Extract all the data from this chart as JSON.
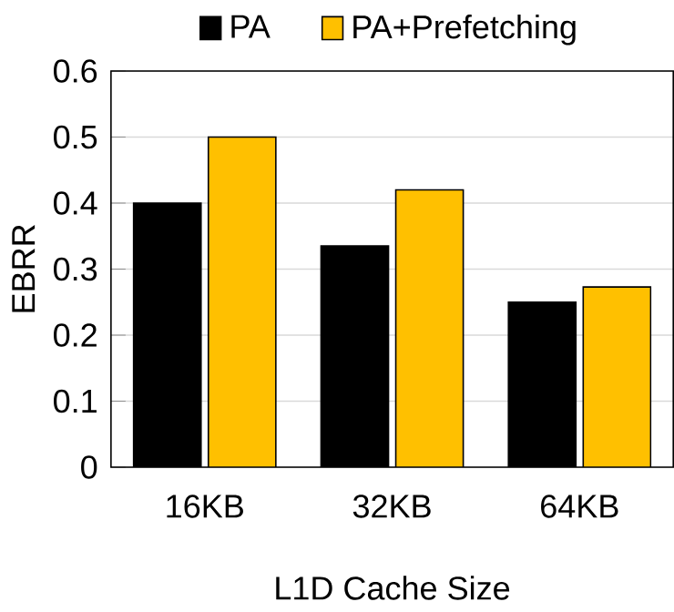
{
  "chart_data": {
    "type": "bar",
    "xlabel": "L1D Cache Size",
    "ylabel": "EBRR",
    "categories": [
      "16KB",
      "32KB",
      "64KB"
    ],
    "series": [
      {
        "name": "PA",
        "color": "#000000",
        "values": [
          0.4,
          0.335,
          0.25
        ]
      },
      {
        "name": "PA+Prefetching",
        "color": "#ffc000",
        "values": [
          0.5,
          0.42,
          0.273
        ]
      }
    ],
    "ylim": [
      0,
      0.6
    ],
    "yticks": [
      0,
      0.1,
      0.2,
      0.3,
      0.4,
      0.5,
      0.6
    ],
    "grid": "y",
    "legend": "top"
  }
}
